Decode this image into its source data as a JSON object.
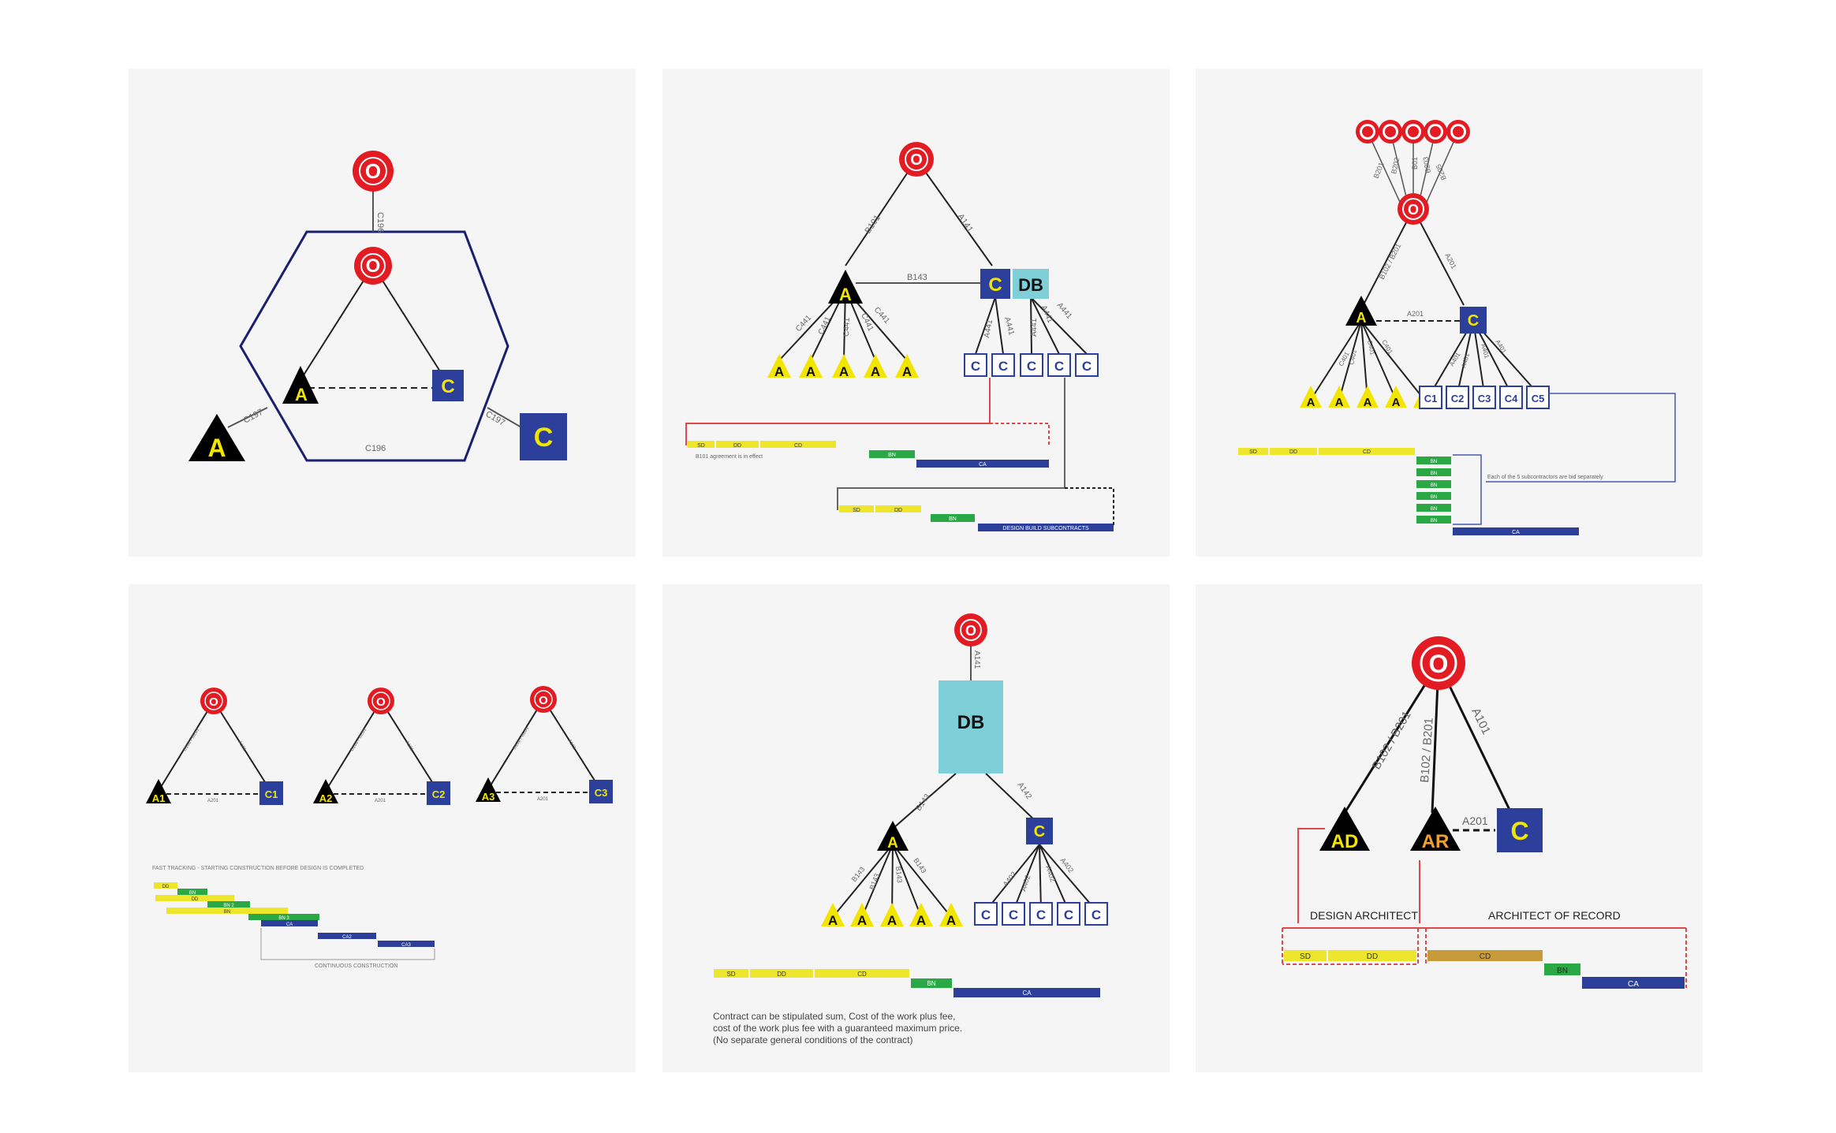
{
  "colors": {
    "owner": "#e31b23",
    "architect_fill": "#000000",
    "architect_letter": "#f2e600",
    "contractor": "#2b3f9b",
    "db": "#7fcfd8",
    "yellow_bar": "#ede62c",
    "green_bar": "#2aa845",
    "blue_bar": "#2b3f9b",
    "gold_bar": "#c79a3a",
    "line_red": "#e0464a",
    "hexagon": "#1a1f6e"
  },
  "letters": {
    "owner": "O",
    "architect": "A",
    "contractor": "C",
    "db": "DB"
  },
  "panel1": {
    "c196_top": "C196",
    "c196_bottom": "C196",
    "c197_left": "C197",
    "c197_right": "C197"
  },
  "panel2": {
    "b101": "B101",
    "a141": "A141",
    "b143": "B143",
    "c441": "C441",
    "c_labels": [
      "A441",
      "A441"
    ],
    "db_labels": [
      "A441",
      "A441",
      "A441"
    ],
    "bars1": {
      "sd": "SD",
      "dd": "DD",
      "cd": "CD",
      "bn": "BN",
      "ca": "CA"
    },
    "note1": "B101 agreement is in effect",
    "bars2": {
      "sd": "SD",
      "dd": "DD",
      "bn": "BN",
      "ca": "DESIGN BUILD SUBCONTRACTS"
    }
  },
  "panel3": {
    "top_labels": [
      "B201",
      "B202",
      "B01",
      "B203",
      "B205"
    ],
    "owner_arch": "B102 / B201",
    "owner_contr": "A201",
    "arch_contr": "A201",
    "arch_sub_labels": [
      "C401",
      "C401",
      "C401",
      "C401"
    ],
    "c_sub_labels": [
      "A401",
      "A401",
      "A401",
      "A401"
    ],
    "c_subs": [
      "C1",
      "C2",
      "C3",
      "C4",
      "C5"
    ],
    "bars": {
      "sd": "SD",
      "dd": "DD",
      "cd": "CD",
      "bn": [
        "BN",
        "BN",
        "BN",
        "BN",
        "BN",
        "BN"
      ],
      "ca": "CA"
    },
    "note": "Each of the 5 subcontractors are bid separately"
  },
  "panel4": {
    "groups": [
      {
        "a": "A1",
        "c": "C1",
        "oa": "B102 / B201",
        "oc": "A101",
        "ac": "A201"
      },
      {
        "a": "A2",
        "c": "C2",
        "oa": "B102 / B201",
        "oc": "A101",
        "ac": "A201"
      },
      {
        "a": "A3",
        "c": "C3",
        "oa": "B102 / B201",
        "oc": "A101",
        "ac": "A201"
      }
    ],
    "title": "FAST TRACKING - STARTING CONSTRUCTION BEFORE DESIGN IS COMPLETED",
    "bars": [
      "DD",
      "BN",
      "DD",
      "BN 2",
      "BN",
      "BN 3",
      "CA",
      "CA2",
      "CA3"
    ],
    "continuous": "CONTINUOUS CONSTRUCTION"
  },
  "panel5": {
    "a141": "A141",
    "b143": "B143",
    "a142": "A142",
    "arch_sub_labels": [
      "B143",
      "B143",
      "B143",
      "B143"
    ],
    "c_sub_labels": [
      "A402",
      "A402",
      "A402",
      "A402"
    ],
    "bars": {
      "sd": "SD",
      "dd": "DD",
      "cd": "CD",
      "bn": "BN",
      "ca": "CA"
    },
    "note": [
      "Contract can be stipulated sum, Cost of the work plus fee,",
      "cost of the work plus fee with a guaranteed maximum price.",
      "(No separate general conditions of the contract)"
    ]
  },
  "panel6": {
    "ad": "AD",
    "ar": "AR",
    "left": "B102 / B201",
    "middle": "B102 / B201",
    "right": "A101",
    "a201": "A201",
    "design_architect": "DESIGN ARCHITECT",
    "architect_of_record": "ARCHITECT OF RECORD",
    "bars": {
      "sd": "SD",
      "dd": "DD",
      "cd": "CD",
      "bn": "BN",
      "ca": "CA"
    }
  }
}
